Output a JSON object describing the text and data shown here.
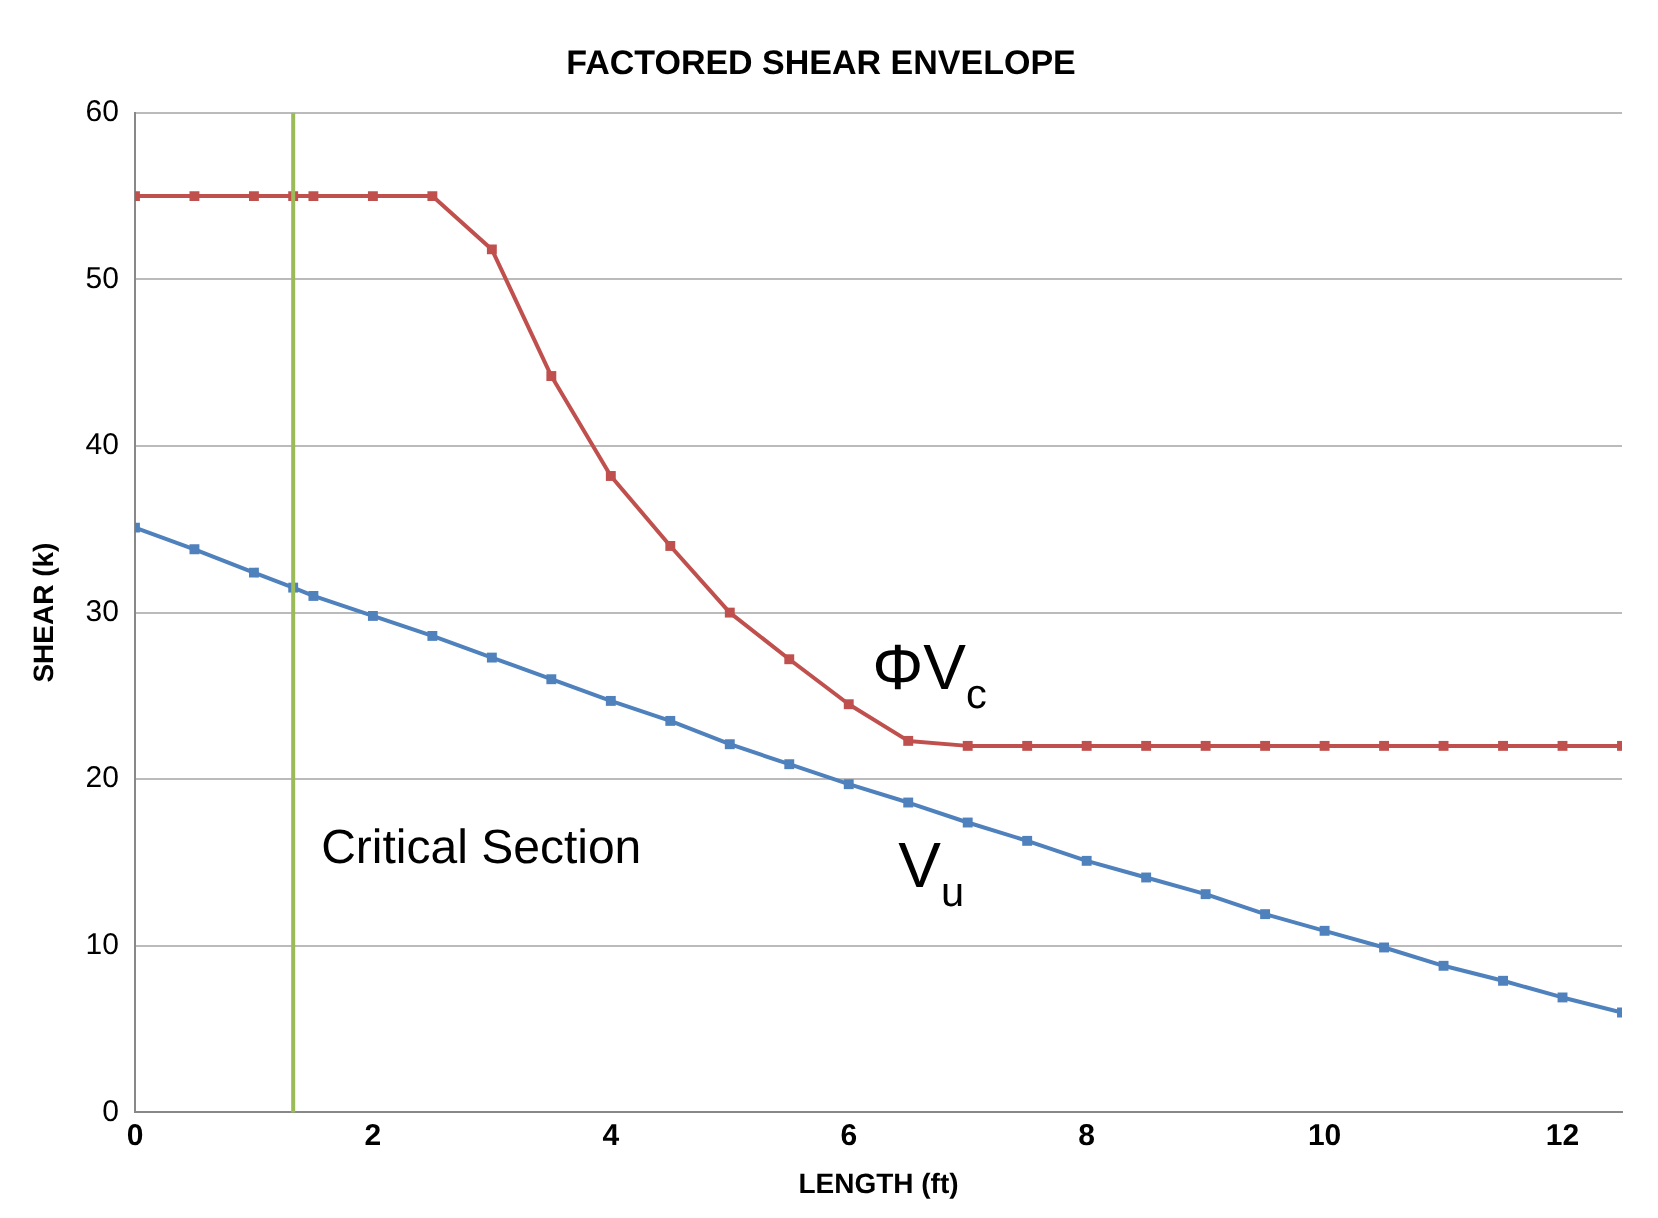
{
  "chart_data": {
    "type": "line",
    "title": "FACTORED SHEAR ENVELOPE",
    "xlabel": "LENGTH (ft)",
    "ylabel": "SHEAR (k)",
    "x": [
      0,
      0.5,
      1,
      1.33,
      1.5,
      2,
      2.5,
      3,
      3.5,
      4,
      4.5,
      5,
      5.5,
      6,
      6.5,
      7,
      7.5,
      8,
      8.5,
      9,
      9.5,
      10,
      10.5,
      11,
      11.5,
      12,
      12.5
    ],
    "series": [
      {
        "name": "ΦV$_{c}$",
        "color": "#c0504d",
        "values": [
          55,
          55,
          55,
          55,
          55,
          55,
          55,
          51.8,
          44.2,
          38.2,
          34.0,
          30.0,
          27.2,
          24.5,
          22.3,
          22,
          22,
          22,
          22,
          22,
          22,
          22,
          22,
          22,
          22,
          22,
          22
        ]
      },
      {
        "name": "V$_{u}$",
        "color": "#4f81bd",
        "values": [
          35.1,
          33.8,
          32.4,
          31.5,
          31.0,
          29.8,
          28.6,
          27.3,
          26.0,
          24.7,
          23.5,
          22.1,
          20.9,
          19.7,
          18.6,
          17.4,
          16.3,
          15.1,
          14.1,
          13.1,
          11.9,
          10.9,
          9.9,
          8.8,
          7.9,
          6.9,
          6.0
        ]
      }
    ],
    "xlim": [
      0,
      12.5
    ],
    "xticks": [
      0,
      2,
      4,
      6,
      8,
      10,
      12
    ],
    "ylim": [
      0,
      60
    ],
    "yticks": [
      0,
      10,
      20,
      30,
      40,
      50,
      60
    ],
    "ref_lines": [
      {
        "axis": "x",
        "value": 1.33,
        "label": "Critical Section",
        "color": "#9bbb59"
      }
    ],
    "grid": "y",
    "legend": false,
    "marker": "square",
    "line_style": "solid"
  }
}
